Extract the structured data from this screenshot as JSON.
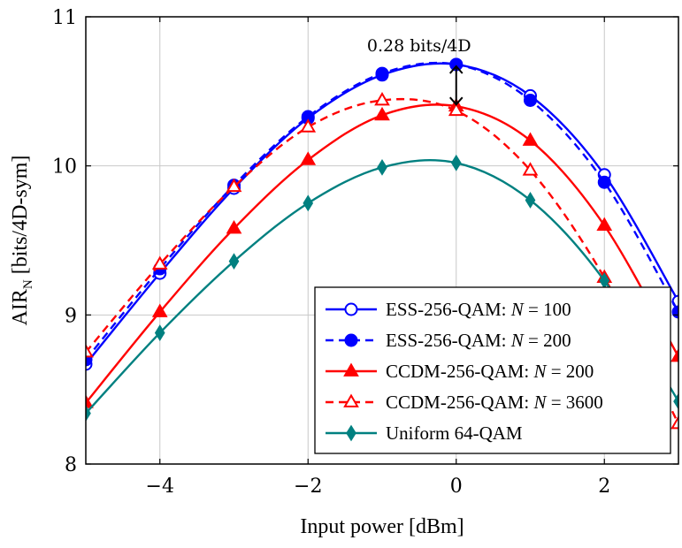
{
  "chart_data": {
    "type": "line",
    "title": "",
    "xlabel": "Input power [dBm]",
    "ylabel": "AIR",
    "ylabel_sub": "N",
    "ylabel_rest": " [bits/4D-sym]",
    "xlim": [
      -5,
      3
    ],
    "ylim": [
      8,
      11
    ],
    "xticks": [
      -4,
      -2,
      0,
      2
    ],
    "xtick_labels": [
      "−4",
      "−2",
      "0",
      "2"
    ],
    "yticks": [
      8,
      9,
      10,
      11
    ],
    "ytick_labels": [
      "8",
      "9",
      "10",
      "11"
    ],
    "grid": true,
    "legend_position": "bottom-right",
    "annotation": {
      "text": "0.28 bits/4D",
      "x": 0,
      "y_from": 10.4,
      "y_to": 10.68
    },
    "series": [
      {
        "name": "ESS-256-QAM: N = 100",
        "legend_prefix": "ESS-256-QAM: ",
        "legend_var": "N",
        "legend_value": " = 100",
        "color": "#0000ff",
        "dash": "solid",
        "marker": "circle-open",
        "x": [
          -5,
          -4,
          -3,
          -2,
          -1,
          0,
          1,
          2,
          3
        ],
        "y": [
          8.67,
          9.28,
          9.85,
          10.32,
          10.61,
          10.68,
          10.47,
          9.94,
          9.09
        ]
      },
      {
        "name": "ESS-256-QAM: N = 200",
        "legend_prefix": "ESS-256-QAM: ",
        "legend_var": "N",
        "legend_value": " = 200",
        "color": "#0000ff",
        "dash": "dashed",
        "marker": "circle-filled",
        "x": [
          -5,
          -4,
          -3,
          -2,
          -1,
          0,
          1,
          2,
          3
        ],
        "y": [
          8.7,
          9.31,
          9.87,
          10.33,
          10.62,
          10.68,
          10.44,
          9.89,
          9.02
        ]
      },
      {
        "name": "CCDM-256-QAM: N = 200",
        "legend_prefix": "CCDM-256-QAM: ",
        "legend_var": "N",
        "legend_value": " = 200",
        "color": "#ff0000",
        "dash": "solid",
        "marker": "triangle-filled",
        "x": [
          -5,
          -4,
          -3,
          -2,
          -1,
          0,
          1,
          2,
          3
        ],
        "y": [
          8.41,
          9.02,
          9.58,
          10.04,
          10.34,
          10.4,
          10.17,
          9.6,
          8.72
        ]
      },
      {
        "name": "CCDM-256-QAM: N = 3600",
        "legend_prefix": "CCDM-256-QAM: ",
        "legend_var": "N",
        "legend_value": " = 3600",
        "color": "#ff0000",
        "dash": "dashed",
        "marker": "triangle-open",
        "x": [
          -5,
          -4,
          -3,
          -2,
          -1,
          0,
          1,
          2,
          3
        ],
        "y": [
          8.75,
          9.34,
          9.86,
          10.26,
          10.44,
          10.37,
          9.97,
          9.25,
          8.27
        ]
      },
      {
        "name": "Uniform 64-QAM",
        "legend_prefix": "Uniform 64-QAM",
        "legend_var": "",
        "legend_value": "",
        "color": "#008080",
        "dash": "solid",
        "marker": "diamond-filled",
        "x": [
          -5,
          -4,
          -3,
          -2,
          -1,
          0,
          1,
          2,
          3
        ],
        "y": [
          8.34,
          8.88,
          9.36,
          9.75,
          9.99,
          10.02,
          9.77,
          9.23,
          8.42
        ]
      }
    ]
  }
}
